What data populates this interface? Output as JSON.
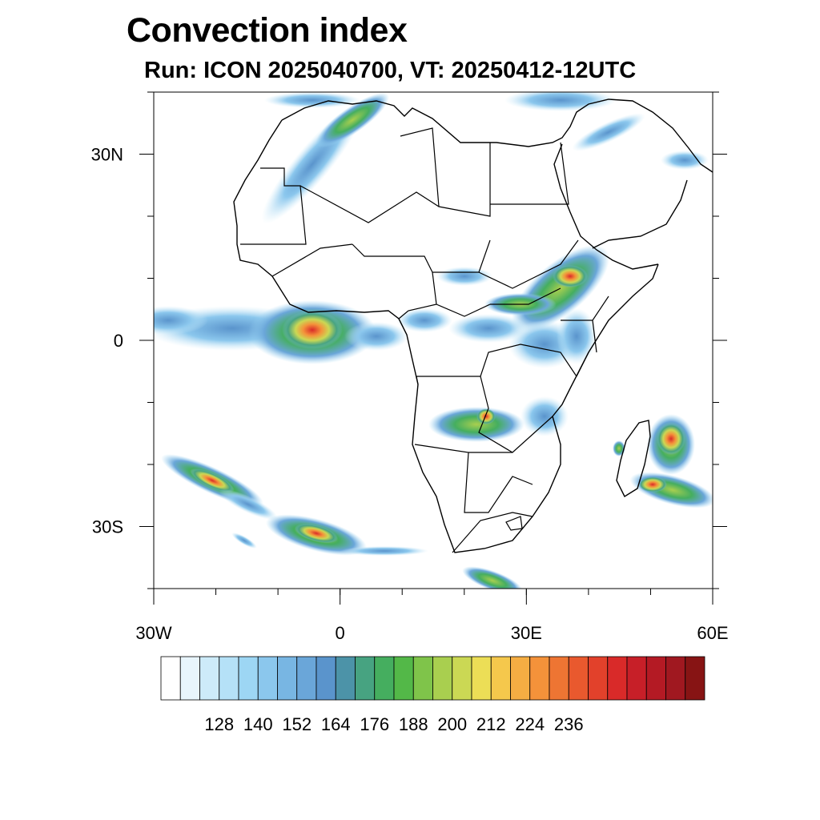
{
  "title": "Convection index",
  "subtitle": "Run: ICON 2025040700,  VT: 20250412-12UTC",
  "map": {
    "lon_range": [
      -30,
      60
    ],
    "lat_range": [
      -40,
      40
    ],
    "lat_ticks": [
      {
        "lat": 30,
        "label": "30N"
      },
      {
        "lat": 0,
        "label": "0"
      },
      {
        "lat": -30,
        "label": "30S"
      }
    ],
    "lon_ticks": [
      {
        "lon": -30,
        "label": "30W"
      },
      {
        "lon": 0,
        "label": "0"
      },
      {
        "lon": 30,
        "label": "30E"
      },
      {
        "lon": 60,
        "label": "60E"
      }
    ]
  },
  "colorbar": {
    "colors": [
      "#ffffff",
      "#e8f5fc",
      "#cdebf9",
      "#b5e1f7",
      "#9dd6f4",
      "#8bc7ed",
      "#78b6e3",
      "#6aa6d9",
      "#5a94cc",
      "#4c93a8",
      "#47a381",
      "#45ae5f",
      "#53b848",
      "#7fc44a",
      "#a9cf4f",
      "#cbd854",
      "#ecde56",
      "#f5c84c",
      "#f5ad43",
      "#f4923a",
      "#ee7533",
      "#e9592e",
      "#e2412b",
      "#d92a29",
      "#c71f28",
      "#b41a24",
      "#a01820",
      "#871414"
    ],
    "labels": [
      "128",
      "140",
      "152",
      "164",
      "176",
      "188",
      "200",
      "212",
      "224",
      "236"
    ]
  }
}
